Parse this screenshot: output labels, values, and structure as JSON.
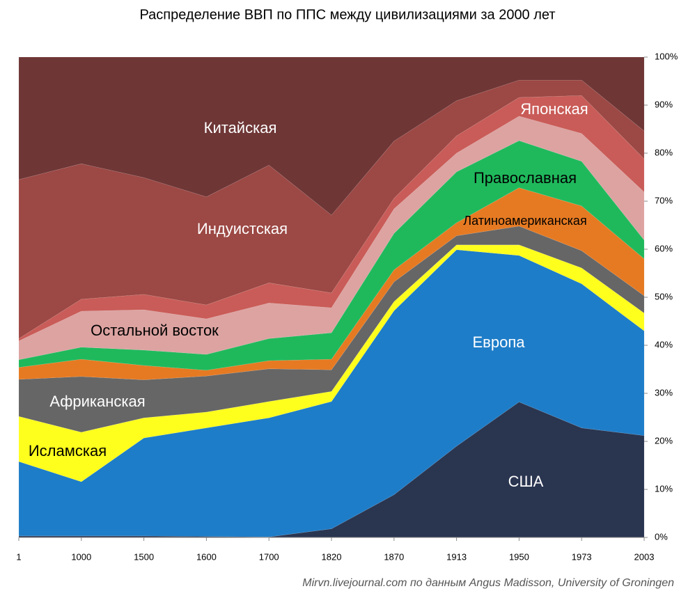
{
  "chart_data": {
    "type": "stacked-area",
    "title": "Распределение ВВП по ППС между цивилизациями за 2000 лет",
    "source": "Mirvn.livejournal.com по данным Angus Madisson, University of Groningen",
    "categories": [
      "1",
      "1000",
      "1500",
      "1600",
      "1700",
      "1820",
      "1870",
      "1913",
      "1950",
      "1973",
      "2003"
    ],
    "ylim": [
      0,
      100
    ],
    "yticks": [
      {
        "value": 0,
        "label": "0%"
      },
      {
        "value": 10,
        "label": "10%"
      },
      {
        "value": 20,
        "label": "20%"
      },
      {
        "value": 30,
        "label": "30%"
      },
      {
        "value": 40,
        "label": "40%"
      },
      {
        "value": 50,
        "label": "50%"
      },
      {
        "value": 60,
        "label": "60%"
      },
      {
        "value": 70,
        "label": "70%"
      },
      {
        "value": 80,
        "label": "80%"
      },
      {
        "value": 90,
        "label": "90%"
      },
      {
        "value": 100,
        "label": "100%"
      }
    ],
    "series": [
      {
        "name": "США",
        "color": "#2a3550",
        "values": [
          0.3,
          0.3,
          0.3,
          0.2,
          0.1,
          1.8,
          8.9,
          19,
          28.2,
          22.8,
          21.2
        ]
      },
      {
        "name": "Европа",
        "color": "#1e7dc8",
        "values": [
          15.5,
          11.3,
          20.4,
          22.6,
          24.8,
          26.5,
          38.3,
          40.9,
          30.5,
          30.0,
          21.8
        ]
      },
      {
        "name": "Исламская",
        "color": "#ffff1e",
        "values": [
          9.4,
          10.3,
          4.2,
          3.3,
          3.4,
          2.1,
          1.9,
          1.0,
          2.2,
          3.3,
          3.7
        ]
      },
      {
        "name": "Африканская",
        "color": "#666666",
        "values": [
          7.7,
          11.6,
          7.9,
          7.5,
          6.8,
          4.5,
          4.1,
          1.9,
          3.9,
          3.6,
          3.6
        ]
      },
      {
        "name": "Латиноамериканская",
        "color": "#e67a22",
        "values": [
          2.5,
          3.6,
          3.0,
          1.2,
          1.7,
          2.2,
          2.5,
          2.7,
          8.0,
          9.3,
          7.7
        ]
      },
      {
        "name": "Православная",
        "color": "#1fb95c",
        "values": [
          1.6,
          2.5,
          3.2,
          3.3,
          4.6,
          5.5,
          7.6,
          10.6,
          9.8,
          9.3,
          3.9
        ]
      },
      {
        "name": "Остальной восток",
        "color": "#dca3a1",
        "values": [
          3.9,
          7.5,
          8.4,
          7.4,
          7.4,
          5.2,
          5.1,
          3.9,
          5.1,
          5.8,
          10.0
        ]
      },
      {
        "name": "Японская",
        "color": "#c95c58",
        "values": [
          0.5,
          2.5,
          3.2,
          2.9,
          4.2,
          3.1,
          2.2,
          3.6,
          3.9,
          7.9,
          6.9
        ]
      },
      {
        "name": "Индуистская",
        "color": "#9c4844",
        "values": [
          33.1,
          28.2,
          24.3,
          22.5,
          24.5,
          16.2,
          11.9,
          7.3,
          3.6,
          3.2,
          5.8
        ]
      },
      {
        "name": "Китайская",
        "color": "#6f3636",
        "values": [
          25.5,
          22.2,
          25.1,
          29.1,
          22.5,
          32.9,
          17.5,
          9.1,
          4.8,
          4.8,
          15.4
        ]
      }
    ]
  }
}
